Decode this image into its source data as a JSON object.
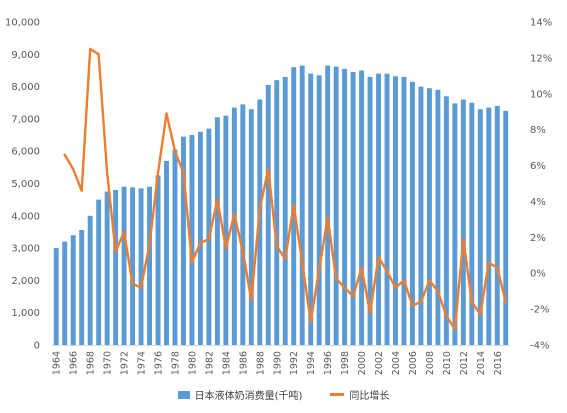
{
  "chart_data": {
    "type": "bar+line",
    "x": [
      "1964",
      "1965",
      "1966",
      "1967",
      "1968",
      "1969",
      "1970",
      "1971",
      "1972",
      "1973",
      "1974",
      "1975",
      "1976",
      "1977",
      "1978",
      "1979",
      "1980",
      "1981",
      "1982",
      "1983",
      "1984",
      "1985",
      "1986",
      "1987",
      "1988",
      "1989",
      "1990",
      "1991",
      "1992",
      "1993",
      "1994",
      "1995",
      "1996",
      "1997",
      "1998",
      "1999",
      "2000",
      "2001",
      "2002",
      "2003",
      "2004",
      "2005",
      "2006",
      "2007",
      "2008",
      "2009",
      "2010",
      "2011",
      "2012",
      "2013",
      "2014",
      "2015",
      "2016",
      "2017"
    ],
    "x_tick_labels": [
      "1964",
      "1966",
      "1968",
      "1970",
      "1972",
      "1974",
      "1976",
      "1978",
      "1980",
      "1982",
      "1984",
      "1986",
      "1988",
      "1990",
      "1992",
      "1994",
      "1996",
      "1998",
      "2000",
      "2002",
      "2004",
      "2006",
      "2008",
      "2010",
      "2012",
      "2014",
      "2016"
    ],
    "series": [
      {
        "name": "日本液体奶消费量(千吨)",
        "axis": "left",
        "kind": "bar",
        "color": "#5b9bd5",
        "values": [
          3000,
          3200,
          3400,
          3560,
          4000,
          4500,
          4750,
          4800,
          4900,
          4880,
          4850,
          4900,
          5250,
          5700,
          6050,
          6450,
          6500,
          6600,
          6700,
          7050,
          7100,
          7350,
          7450,
          7300,
          7600,
          8050,
          8200,
          8300,
          8600,
          8650,
          8400,
          8350,
          8650,
          8620,
          8550,
          8450,
          8500,
          8300,
          8400,
          8400,
          8320,
          8300,
          8150,
          8000,
          7950,
          7900,
          7700,
          7480,
          7600,
          7500,
          7300,
          7350,
          7400,
          7250
        ]
      },
      {
        "name": "同比增长",
        "axis": "right",
        "kind": "line",
        "color": "#ed7d31",
        "values": [
          null,
          6.6,
          5.8,
          4.6,
          12.5,
          12.2,
          5.6,
          1.2,
          2.3,
          -0.6,
          -0.8,
          1.6,
          5.6,
          8.9,
          6.8,
          5.6,
          0.6,
          1.7,
          1.9,
          4.1,
          1.4,
          3.3,
          1.2,
          -1.5,
          3.6,
          5.8,
          1.5,
          0.8,
          3.8,
          0.6,
          -2.7,
          0.2,
          3.1,
          -0.3,
          -0.8,
          -1.3,
          0.3,
          -2.2,
          0.9,
          0.1,
          -0.8,
          -0.4,
          -1.8,
          -1.6,
          -0.4,
          -1.0,
          -2.4,
          -3.1,
          1.9,
          -1.6,
          -2.3,
          0.6,
          0.3,
          -1.6
        ]
      }
    ],
    "y_left": {
      "min": 0,
      "max": 10000,
      "ticks": [
        "0",
        "1,000",
        "2,000",
        "3,000",
        "4,000",
        "5,000",
        "6,000",
        "7,000",
        "8,000",
        "9,000",
        "10,000"
      ]
    },
    "y_right": {
      "min": -4,
      "max": 14,
      "ticks": [
        "-4%",
        "-2%",
        "0%",
        "2%",
        "4%",
        "6%",
        "8%",
        "10%",
        "12%",
        "14%"
      ]
    },
    "grid": false,
    "legend_position": "bottom"
  }
}
